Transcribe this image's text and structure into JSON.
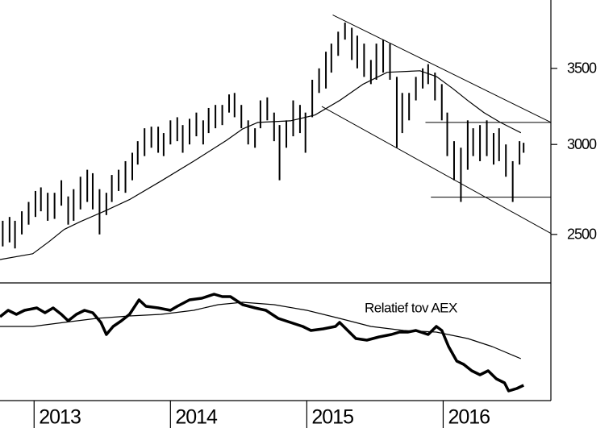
{
  "chart_data": [
    {
      "type": "range_bar",
      "color": "#000000",
      "log_scale": true,
      "xlim": [
        2012.75,
        2016.79
      ],
      "xticks": [
        2013,
        2014,
        2015,
        2016
      ],
      "ylim": [
        2266,
        4020
      ],
      "yticks": [
        2500,
        3000,
        3500
      ],
      "x": [
        2012.77,
        2012.82,
        2012.86,
        2012.91,
        2012.96,
        2013.01,
        2013.05,
        2013.1,
        2013.15,
        2013.2,
        2013.25,
        2013.29,
        2013.34,
        2013.39,
        2013.43,
        2013.48,
        2013.53,
        2013.57,
        2013.62,
        2013.67,
        2013.72,
        2013.76,
        2013.81,
        2013.86,
        2013.91,
        2013.95,
        2014.0,
        2014.05,
        2014.09,
        2014.14,
        2014.19,
        2014.24,
        2014.28,
        2014.33,
        2014.38,
        2014.43,
        2014.47,
        2014.52,
        2014.57,
        2014.62,
        2014.66,
        2014.71,
        2014.76,
        2014.8,
        2014.85,
        2014.9,
        2014.95,
        2014.99,
        2015.04,
        2015.09,
        2015.14,
        2015.18,
        2015.23,
        2015.28,
        2015.33,
        2015.37,
        2015.42,
        2015.47,
        2015.51,
        2015.56,
        2015.61,
        2015.66,
        2015.7,
        2015.75,
        2015.8,
        2015.85,
        2015.89,
        2015.94,
        2015.99,
        2016.03,
        2016.08,
        2016.13,
        2016.18,
        2016.22,
        2016.27,
        2016.32,
        2016.37,
        2016.41,
        2016.46,
        2016.51,
        2016.56,
        2016.59
      ],
      "high": [
        2570,
        2590,
        2570,
        2620,
        2670,
        2730,
        2750,
        2720,
        2720,
        2790,
        2700,
        2740,
        2810,
        2850,
        2830,
        2740,
        2720,
        2820,
        2850,
        2900,
        2950,
        3020,
        3100,
        3110,
        3110,
        3070,
        3150,
        3170,
        3120,
        3160,
        3200,
        3150,
        3230,
        3250,
        3250,
        3320,
        3330,
        3250,
        3150,
        3100,
        3280,
        3300,
        3200,
        3120,
        3150,
        3280,
        3250,
        3200,
        3420,
        3500,
        3620,
        3680,
        3770,
        3840,
        3800,
        3740,
        3680,
        3560,
        3680,
        3710,
        3680,
        3440,
        3330,
        3330,
        3440,
        3500,
        3530,
        3470,
        3390,
        3200,
        3020,
        2980,
        3150,
        3100,
        3120,
        3150,
        3070,
        3100,
        3000,
        2900,
        3020,
        3010
      ],
      "low": [
        2440,
        2460,
        2430,
        2500,
        2550,
        2590,
        2620,
        2570,
        2580,
        2650,
        2550,
        2570,
        2630,
        2670,
        2630,
        2500,
        2600,
        2670,
        2730,
        2720,
        2790,
        2880,
        2930,
        2980,
        2950,
        2930,
        3000,
        3020,
        2950,
        3000,
        3050,
        3000,
        3070,
        3100,
        3120,
        3200,
        3170,
        3100,
        3000,
        2980,
        3100,
        3150,
        3020,
        2790,
        2980,
        3050,
        3070,
        2950,
        3170,
        3330,
        3360,
        3470,
        3590,
        3710,
        3560,
        3500,
        3440,
        3390,
        3420,
        3470,
        3420,
        2980,
        3070,
        3150,
        3280,
        3360,
        3390,
        3280,
        3150,
        2930,
        2790,
        2670,
        2850,
        2930,
        2900,
        2930,
        2880,
        2900,
        2810,
        2670,
        2880,
        2950
      ],
      "average": {
        "x": [
          2012.75,
          2012.99,
          2013.11,
          2013.22,
          2013.34,
          2013.52,
          2013.7,
          2013.93,
          2014.17,
          2014.41,
          2014.53,
          2014.64,
          2014.88,
          2015.06,
          2015.24,
          2015.41,
          2015.59,
          2015.83,
          2015.95,
          2016.07,
          2016.18,
          2016.3,
          2016.42,
          2016.57
        ],
        "values": [
          2376,
          2404,
          2464,
          2525,
          2566,
          2622,
          2683,
          2785,
          2900,
          3024,
          3096,
          3137,
          3147,
          3184,
          3279,
          3388,
          3472,
          3483,
          3443,
          3360,
          3279,
          3199,
          3137,
          3072
        ]
      },
      "lines": [
        {
          "x": [
            2015.19,
            2016.79
          ],
          "y": [
            3900,
            3137
          ]
        },
        {
          "x": [
            2015.11,
            2016.79
          ],
          "y": [
            3240,
            2505
          ]
        },
        {
          "x": [
            2015.87,
            2016.79
          ],
          "y": [
            3137,
            3137
          ]
        },
        {
          "x": [
            2015.91,
            2016.79
          ],
          "y": [
            2696,
            2696
          ]
        }
      ]
    },
    {
      "type": "line",
      "color": "#000000",
      "annotation": "Relatief tov AEX",
      "ylim": [
        0,
        145
      ],
      "x": [
        2012.75,
        2012.81,
        2012.87,
        2012.93,
        2013.02,
        2013.08,
        2013.14,
        2013.2,
        2013.25,
        2013.31,
        2013.37,
        2013.43,
        2013.49,
        2013.53,
        2013.58,
        2013.64,
        2013.7,
        2013.77,
        2013.82,
        2013.91,
        2014.0,
        2014.05,
        2014.14,
        2014.23,
        2014.32,
        2014.38,
        2014.44,
        2014.53,
        2014.62,
        2014.7,
        2014.79,
        2014.88,
        2014.97,
        2015.03,
        2015.12,
        2015.21,
        2015.24,
        2015.3,
        2015.36,
        2015.44,
        2015.53,
        2015.62,
        2015.68,
        2015.74,
        2015.8,
        2015.89,
        2015.95,
        2015.99,
        2016.04,
        2016.1,
        2016.15,
        2016.21,
        2016.27,
        2016.33,
        2016.39,
        2016.45,
        2016.48,
        2016.54,
        2016.59
      ],
      "values": [
        104,
        112,
        107,
        112,
        115,
        109,
        115,
        107,
        99,
        107,
        112,
        109,
        97,
        82,
        92,
        99,
        107,
        125,
        117,
        115,
        112,
        117,
        125,
        127,
        132,
        129,
        129,
        119,
        115,
        112,
        102,
        97,
        92,
        87,
        89,
        92,
        97,
        87,
        77,
        75,
        79,
        82,
        85,
        85,
        87,
        82,
        92,
        87,
        67,
        49,
        45,
        37,
        32,
        37,
        27,
        22,
        12,
        15,
        19
      ],
      "average": {
        "x": [
          2012.75,
          2012.99,
          2013.22,
          2013.46,
          2013.7,
          2013.93,
          2014.17,
          2014.35,
          2014.53,
          2014.76,
          2015.0,
          2015.24,
          2015.47,
          2015.71,
          2015.95,
          2016.18,
          2016.36,
          2016.57
        ],
        "values": [
          92,
          92,
          97,
          102,
          105,
          107,
          112,
          119,
          122,
          119,
          112,
          102,
          92,
          87,
          85,
          77,
          67,
          52
        ]
      }
    }
  ]
}
